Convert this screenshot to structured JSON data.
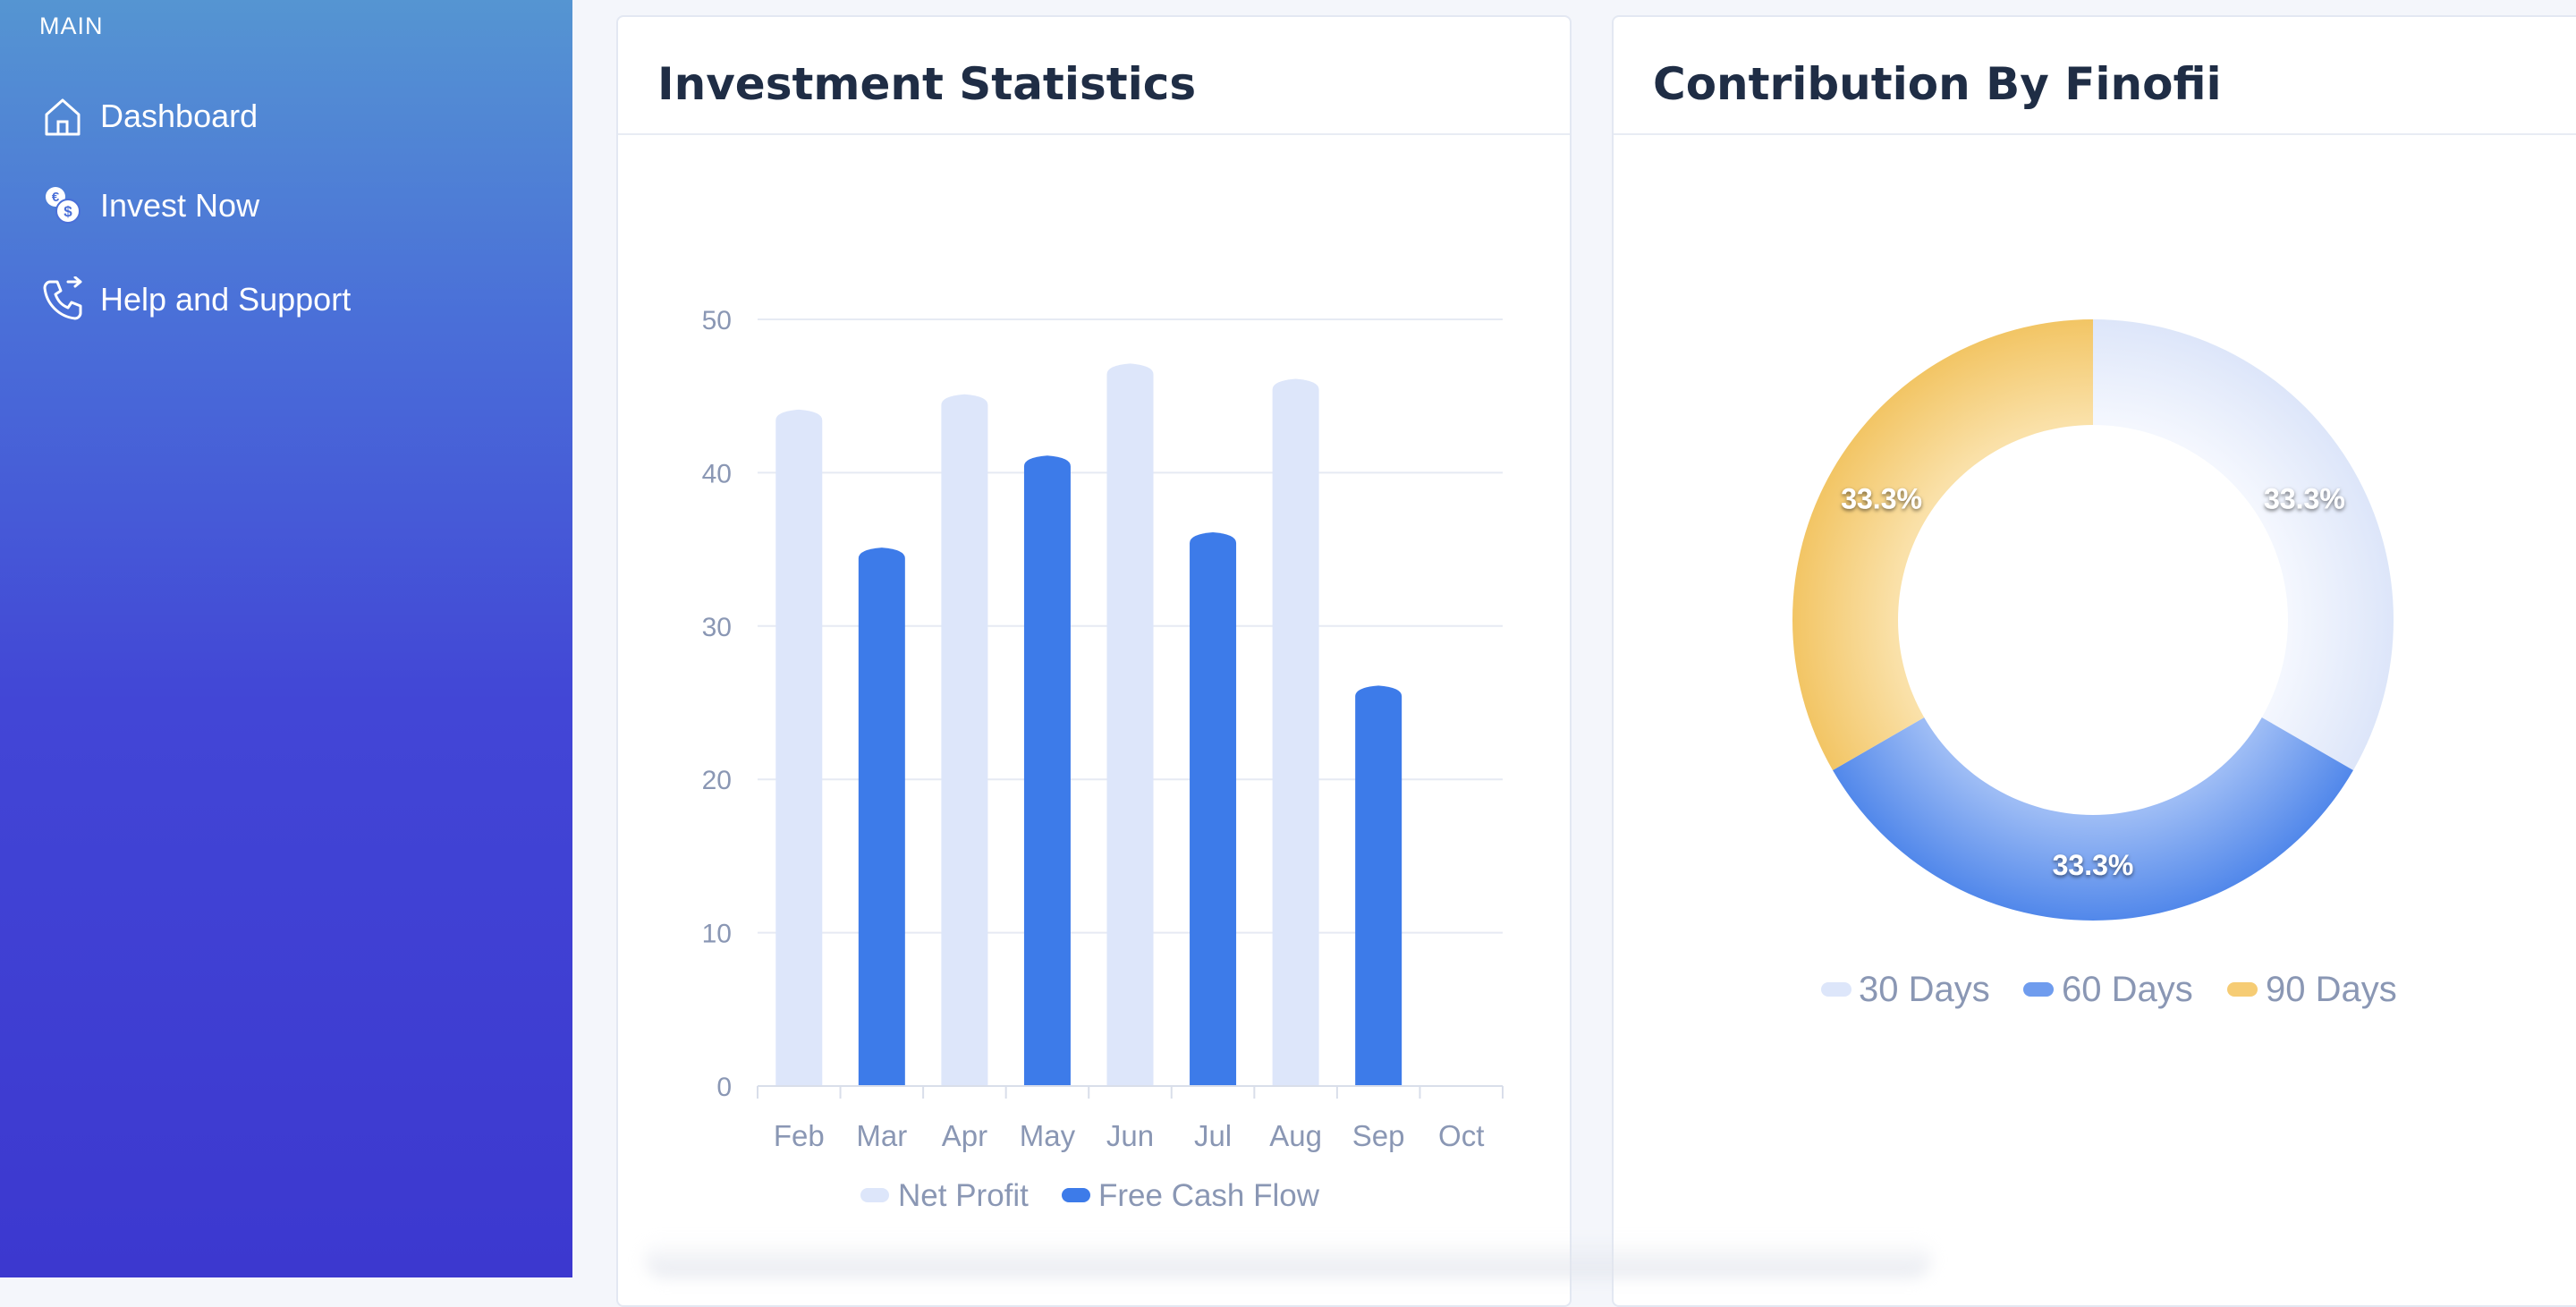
{
  "sidebar": {
    "header": "MAIN",
    "items": [
      {
        "label": "Dashboard",
        "icon": "home-icon"
      },
      {
        "label": "Invest Now",
        "icon": "coins-icon"
      },
      {
        "label": "Help and Support",
        "icon": "phone-icon"
      }
    ]
  },
  "investment_card": {
    "title": "Investment Statistics"
  },
  "contribution_card": {
    "title": "Contribution By Finofii"
  },
  "colors": {
    "net_profit": "#dde6fa",
    "free_cash_flow": "#3d7be9",
    "days30": "#dde6fa",
    "days60": "#6f9cee",
    "days90": "#f6cc74"
  },
  "chart_data": [
    {
      "type": "bar",
      "categories": [
        "Feb",
        "Mar",
        "Apr",
        "May",
        "Jun",
        "Jul",
        "Aug",
        "Sep",
        "Oct"
      ],
      "yticks": [
        0,
        10,
        20,
        30,
        40,
        50
      ],
      "ylim": [
        0,
        50
      ],
      "grid": true,
      "legend": "bottom",
      "series": [
        {
          "name": "Net Profit",
          "points": [
            {
              "x": "Feb",
              "y": 44
            },
            {
              "x": "Apr",
              "y": 45
            },
            {
              "x": "Jun",
              "y": 47
            },
            {
              "x": "Aug",
              "y": 46
            }
          ]
        },
        {
          "name": "Free Cash Flow",
          "points": [
            {
              "x": "Mar",
              "y": 35
            },
            {
              "x": "May",
              "y": 41
            },
            {
              "x": "Jul",
              "y": 36
            },
            {
              "x": "Sep",
              "y": 26
            }
          ]
        }
      ]
    },
    {
      "type": "pie",
      "donut": true,
      "legend": "bottom",
      "labels": [
        "30 Days",
        "60 Days",
        "90 Days"
      ],
      "values": [
        33.3,
        33.3,
        33.3
      ],
      "value_labels": [
        "33.3%",
        "33.3%",
        "33.3%"
      ]
    }
  ]
}
